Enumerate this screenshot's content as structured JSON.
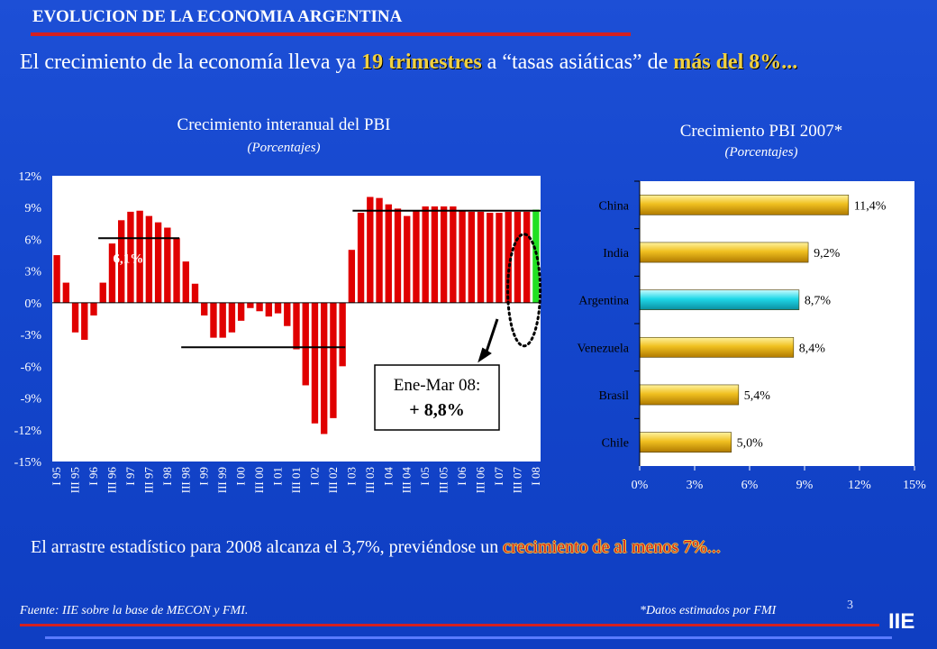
{
  "header": {
    "title": "EVOLUCION DE LA ECONOMIA ARGENTINA"
  },
  "headline": {
    "part1": "El crecimiento de la economía lleva ya ",
    "part2": "19 trimestres",
    "part3": " a “tasas asiáticas” de ",
    "part4": "más del 8%..."
  },
  "left_chart": {
    "title": "Crecimiento interanual del PBI",
    "subtitle": "(Porcentajes)",
    "annotations": {
      "avg_1": "6,1%",
      "avg_2": "-4,2%",
      "avg_3": "8,7%",
      "box_line1": "Ene-Mar 08:",
      "box_line2": "+ 8,8%"
    }
  },
  "right_chart": {
    "title": "Crecimiento PBI 2007*",
    "subtitle": "(Porcentajes)"
  },
  "bottom": {
    "text1": "El arrastre estadístico para 2008 alcanza el 3,7%, previéndose un ",
    "text2": "crecimiento de al menos 7%..."
  },
  "footer": {
    "source": "Fuente: IIE sobre la base de MECON y FMI.",
    "note": "*Datos estimados por FMI",
    "page": "3",
    "logo": "IIE"
  },
  "colors": {
    "background": "#1446cc",
    "bar_red": "#e00000",
    "bar_green": "#22e022",
    "gold": "#e8b000",
    "cyan": "#20d8e8",
    "accent_rule": "#d42020"
  },
  "chart_data": [
    {
      "type": "bar",
      "title": "Crecimiento interanual del PBI",
      "subtitle": "(Porcentajes)",
      "ylim": [
        -15,
        12
      ],
      "yticks": [
        "-15%",
        "-12%",
        "-9%",
        "-6%",
        "-3%",
        "0%",
        "3%",
        "6%",
        "9%",
        "12%"
      ],
      "xtick_labels": [
        "I 95",
        "III 95",
        "I 96",
        "III 96",
        "I 97",
        "III 97",
        "I 98",
        "III 98",
        "I 99",
        "III 99",
        "I 00",
        "III 00",
        "I 01",
        "III 01",
        "I 02",
        "III 02",
        "I 03",
        "III 03",
        "I 04",
        "III 04",
        "I 05",
        "III 05",
        "I 06",
        "III 06",
        "I 07",
        "III 07",
        "I 08"
      ],
      "categories": [
        "I 95",
        "II 95",
        "III 95",
        "IV 95",
        "I 96",
        "II 96",
        "III 96",
        "IV 96",
        "I 97",
        "II 97",
        "III 97",
        "IV 97",
        "I 98",
        "II 98",
        "III 98",
        "IV 98",
        "I 99",
        "II 99",
        "III 99",
        "IV 99",
        "I 00",
        "II 00",
        "III 00",
        "IV 00",
        "I 01",
        "II 01",
        "III 01",
        "IV 01",
        "I 02",
        "II 02",
        "III 02",
        "IV 02",
        "I 03",
        "II 03",
        "III 03",
        "IV 03",
        "I 04",
        "II 04",
        "III 04",
        "IV 04",
        "I 05",
        "II 05",
        "III 05",
        "IV 05",
        "I 06",
        "II 06",
        "III 06",
        "IV 06",
        "I 07",
        "II 07",
        "III 07",
        "IV 07",
        "I 08"
      ],
      "values": [
        4.5,
        1.9,
        -2.8,
        -3.5,
        -1.2,
        1.9,
        5.6,
        7.8,
        8.6,
        8.7,
        8.2,
        7.6,
        7.1,
        6.1,
        3.9,
        1.8,
        -1.2,
        -3.3,
        -3.3,
        -2.8,
        -1.7,
        -0.5,
        -0.8,
        -1.3,
        -1.0,
        -2.2,
        -4.4,
        -7.8,
        -11.4,
        -12.4,
        -10.9,
        -6.0,
        5.0,
        8.5,
        10.0,
        9.9,
        9.3,
        8.9,
        8.2,
        8.7,
        9.1,
        9.1,
        9.1,
        9.1,
        8.7,
        8.6,
        8.6,
        8.5,
        8.5,
        8.6,
        8.6,
        8.6,
        8.8
      ],
      "highlight_last": true,
      "grid": false
    },
    {
      "type": "bar",
      "orientation": "horizontal",
      "title": "Crecimiento PBI 2007*",
      "subtitle": "(Porcentajes)",
      "categories": [
        "China",
        "India",
        "Argentina",
        "Venezuela",
        "Brasil",
        "Chile"
      ],
      "values": [
        11.4,
        9.2,
        8.7,
        8.4,
        5.4,
        5.0
      ],
      "value_labels": [
        "11,4%",
        "9,2%",
        "8,7%",
        "8,4%",
        "5,4%",
        "5,0%"
      ],
      "xlim": [
        0,
        15
      ],
      "xticks": [
        "0%",
        "3%",
        "6%",
        "9%",
        "12%",
        "15%"
      ],
      "highlight": "Argentina",
      "grid": false
    }
  ]
}
